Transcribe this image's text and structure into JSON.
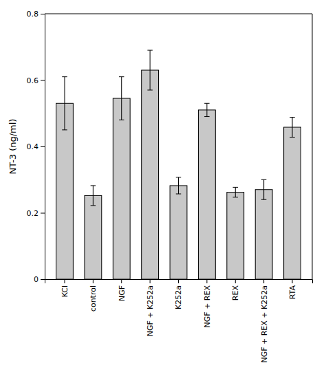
{
  "chart_data": {
    "type": "bar",
    "categories": [
      "KCl",
      "control",
      "NGF",
      "NGF + K252a",
      "K252a",
      "NGF + REX",
      "REX",
      "NGF + REX + K252a",
      "RTA"
    ],
    "values": [
      0.53,
      0.252,
      0.545,
      0.63,
      0.282,
      0.51,
      0.262,
      0.27,
      0.458
    ],
    "errors": [
      0.08,
      0.03,
      0.065,
      0.06,
      0.025,
      0.02,
      0.015,
      0.03,
      0.03
    ],
    "color": "#c8c8c8",
    "ylabel": "NT-3 (ng/ml)",
    "ylim": [
      0,
      0.8
    ],
    "yticks": [
      0,
      0.2,
      0.4,
      0.6,
      0.8
    ],
    "grid": false
  }
}
